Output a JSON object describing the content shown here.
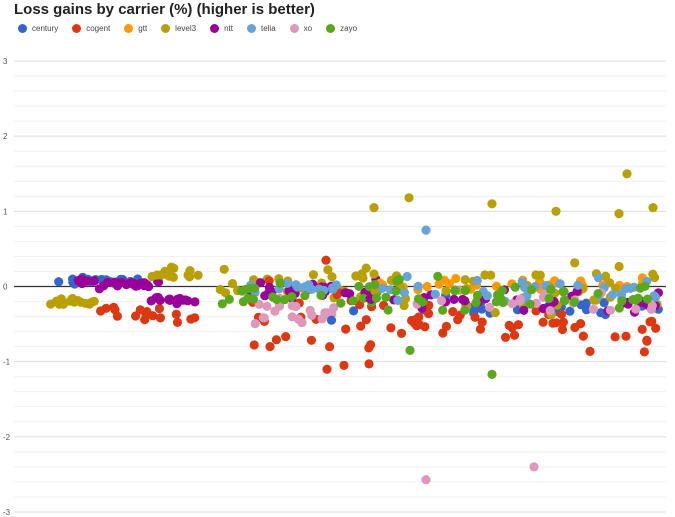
{
  "chart_data": {
    "type": "scatter",
    "title": "Loss gains by carrier (%) (higher is better)",
    "xlabel": "",
    "ylabel": "",
    "ylim": [
      -3,
      3
    ],
    "yticks": [
      "3",
      "2",
      "1",
      "0",
      "-1",
      "-2",
      "-3"
    ],
    "grid": true,
    "legend_position": "top-left",
    "series": [
      {
        "name": "century",
        "color": "#3366cc"
      },
      {
        "name": "cogent",
        "color": "#dc3912"
      },
      {
        "name": "gtt",
        "color": "#ff9900"
      },
      {
        "name": "level3",
        "color": "#b8a000"
      },
      {
        "name": "ntt",
        "color": "#990099"
      },
      {
        "name": "telia",
        "color": "#66a3d9"
      },
      {
        "name": "xo",
        "color": "#dd99bb"
      },
      {
        "name": "zayo",
        "color": "#5aa81e"
      }
    ]
  }
}
